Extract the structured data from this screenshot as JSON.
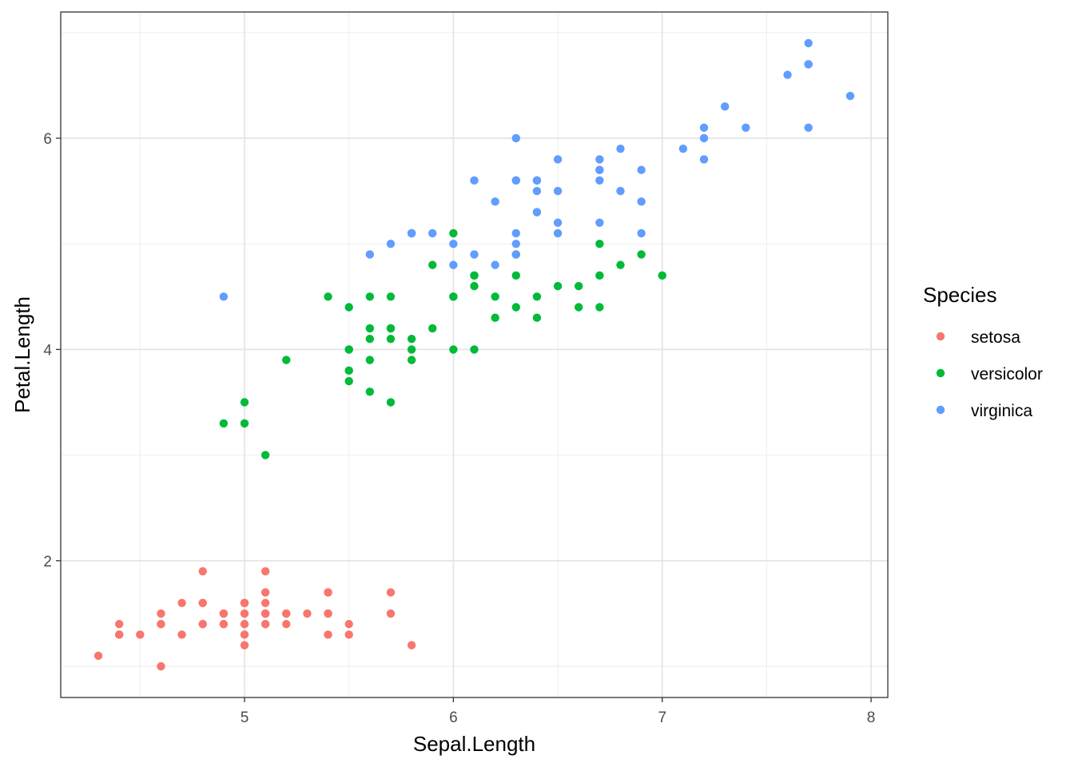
{
  "chart_data": {
    "type": "scatter",
    "title": "",
    "xlabel": "Sepal.Length",
    "ylabel": "Petal.Length",
    "xlim": [
      4.12,
      8.08
    ],
    "ylim": [
      0.705,
      7.195
    ],
    "x_ticks": [
      5,
      6,
      7,
      8
    ],
    "y_ticks": [
      2,
      4,
      6
    ],
    "x_minor": [
      4.5,
      5.5,
      6.5,
      7.5
    ],
    "y_minor": [
      1,
      3,
      5,
      7
    ],
    "grid": true,
    "theme": "bw",
    "legend": {
      "title": "Species",
      "placement": "right"
    },
    "series": [
      {
        "name": "setosa",
        "color": "#F8766D",
        "points": [
          [
            5.1,
            1.4
          ],
          [
            4.9,
            1.4
          ],
          [
            4.7,
            1.3
          ],
          [
            4.6,
            1.5
          ],
          [
            5.0,
            1.4
          ],
          [
            5.4,
            1.7
          ],
          [
            4.6,
            1.4
          ],
          [
            5.0,
            1.5
          ],
          [
            4.4,
            1.4
          ],
          [
            4.9,
            1.5
          ],
          [
            5.4,
            1.5
          ],
          [
            4.8,
            1.6
          ],
          [
            4.8,
            1.4
          ],
          [
            4.3,
            1.1
          ],
          [
            5.8,
            1.2
          ],
          [
            5.7,
            1.5
          ],
          [
            5.4,
            1.3
          ],
          [
            5.1,
            1.4
          ],
          [
            5.7,
            1.7
          ],
          [
            5.1,
            1.5
          ],
          [
            5.4,
            1.7
          ],
          [
            5.1,
            1.5
          ],
          [
            4.6,
            1.0
          ],
          [
            5.1,
            1.7
          ],
          [
            4.8,
            1.9
          ],
          [
            5.0,
            1.6
          ],
          [
            5.0,
            1.6
          ],
          [
            5.2,
            1.5
          ],
          [
            5.2,
            1.4
          ],
          [
            4.7,
            1.6
          ],
          [
            4.8,
            1.6
          ],
          [
            5.4,
            1.5
          ],
          [
            5.2,
            1.5
          ],
          [
            5.5,
            1.4
          ],
          [
            4.9,
            1.5
          ],
          [
            5.0,
            1.2
          ],
          [
            5.5,
            1.3
          ],
          [
            4.9,
            1.4
          ],
          [
            4.4,
            1.3
          ],
          [
            5.1,
            1.5
          ],
          [
            5.0,
            1.3
          ],
          [
            4.5,
            1.3
          ],
          [
            4.4,
            1.3
          ],
          [
            5.0,
            1.6
          ],
          [
            5.1,
            1.9
          ],
          [
            4.8,
            1.4
          ],
          [
            5.1,
            1.6
          ],
          [
            4.6,
            1.4
          ],
          [
            5.3,
            1.5
          ],
          [
            5.0,
            1.4
          ]
        ]
      },
      {
        "name": "versicolor",
        "color": "#00BA38",
        "points": [
          [
            7.0,
            4.7
          ],
          [
            6.4,
            4.5
          ],
          [
            6.9,
            4.9
          ],
          [
            5.5,
            4.0
          ],
          [
            6.5,
            4.6
          ],
          [
            5.7,
            4.5
          ],
          [
            6.3,
            4.7
          ],
          [
            4.9,
            3.3
          ],
          [
            6.6,
            4.6
          ],
          [
            5.2,
            3.9
          ],
          [
            5.0,
            3.5
          ],
          [
            5.9,
            4.2
          ],
          [
            6.0,
            4.0
          ],
          [
            6.1,
            4.7
          ],
          [
            5.6,
            3.6
          ],
          [
            6.7,
            4.4
          ],
          [
            5.6,
            4.5
          ],
          [
            5.8,
            4.1
          ],
          [
            6.2,
            4.5
          ],
          [
            5.6,
            3.9
          ],
          [
            5.9,
            4.8
          ],
          [
            6.1,
            4.0
          ],
          [
            6.3,
            4.9
          ],
          [
            6.1,
            4.7
          ],
          [
            6.4,
            4.3
          ],
          [
            6.6,
            4.4
          ],
          [
            6.8,
            4.8
          ],
          [
            6.7,
            5.0
          ],
          [
            6.0,
            4.5
          ],
          [
            5.7,
            3.5
          ],
          [
            5.5,
            3.8
          ],
          [
            5.5,
            3.7
          ],
          [
            5.8,
            3.9
          ],
          [
            6.0,
            5.1
          ],
          [
            5.4,
            4.5
          ],
          [
            6.0,
            4.5
          ],
          [
            6.7,
            4.7
          ],
          [
            6.3,
            4.4
          ],
          [
            5.6,
            4.1
          ],
          [
            5.5,
            4.0
          ],
          [
            5.5,
            4.4
          ],
          [
            6.1,
            4.6
          ],
          [
            5.8,
            4.0
          ],
          [
            5.0,
            3.3
          ],
          [
            5.6,
            4.2
          ],
          [
            5.7,
            4.2
          ],
          [
            5.7,
            4.2
          ],
          [
            6.2,
            4.3
          ],
          [
            5.1,
            3.0
          ],
          [
            5.7,
            4.1
          ]
        ]
      },
      {
        "name": "virginica",
        "color": "#619CFF",
        "points": [
          [
            6.3,
            6.0
          ],
          [
            5.8,
            5.1
          ],
          [
            7.1,
            5.9
          ],
          [
            6.3,
            5.6
          ],
          [
            6.5,
            5.8
          ],
          [
            7.6,
            6.6
          ],
          [
            4.9,
            4.5
          ],
          [
            7.3,
            6.3
          ],
          [
            6.7,
            5.8
          ],
          [
            7.2,
            6.1
          ],
          [
            6.5,
            5.1
          ],
          [
            6.4,
            5.3
          ],
          [
            6.8,
            5.5
          ],
          [
            5.7,
            5.0
          ],
          [
            5.8,
            5.1
          ],
          [
            6.4,
            5.3
          ],
          [
            6.5,
            5.5
          ],
          [
            7.7,
            6.7
          ],
          [
            7.7,
            6.9
          ],
          [
            6.0,
            5.0
          ],
          [
            6.9,
            5.7
          ],
          [
            5.6,
            4.9
          ],
          [
            7.7,
            6.7
          ],
          [
            6.3,
            4.9
          ],
          [
            6.7,
            5.7
          ],
          [
            7.2,
            6.0
          ],
          [
            6.2,
            4.8
          ],
          [
            6.1,
            4.9
          ],
          [
            6.4,
            5.6
          ],
          [
            7.2,
            5.8
          ],
          [
            7.4,
            6.1
          ],
          [
            7.9,
            6.4
          ],
          [
            6.4,
            5.6
          ],
          [
            6.3,
            5.1
          ],
          [
            6.1,
            5.6
          ],
          [
            7.7,
            6.1
          ],
          [
            6.3,
            5.6
          ],
          [
            6.4,
            5.5
          ],
          [
            6.0,
            4.8
          ],
          [
            6.9,
            5.4
          ],
          [
            6.7,
            5.6
          ],
          [
            6.9,
            5.1
          ],
          [
            5.8,
            5.1
          ],
          [
            6.8,
            5.9
          ],
          [
            6.7,
            5.7
          ],
          [
            6.7,
            5.2
          ],
          [
            6.3,
            5.0
          ],
          [
            6.5,
            5.2
          ],
          [
            6.2,
            5.4
          ],
          [
            5.9,
            5.1
          ]
        ]
      }
    ]
  }
}
